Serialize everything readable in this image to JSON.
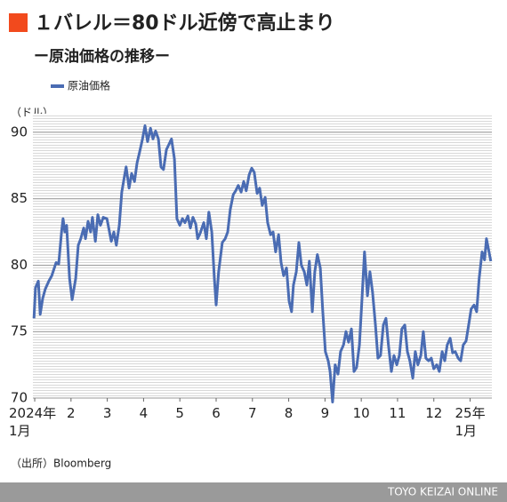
{
  "chart_data": {
    "type": "line",
    "title": "１バレル＝80ドル近傍で高止まり",
    "subtitle": "ー原油価格の推移ー",
    "y_label": "（ドル）",
    "source": "（出所）Bloomberg",
    "credit": "TOYO KEIZAI ONLINE",
    "xlim": [
      -0.05,
      12.6
    ],
    "xticks": [
      {
        "value": 0,
        "label": "2024年\n1月"
      },
      {
        "value": 1,
        "label": "2"
      },
      {
        "value": 2,
        "label": "3"
      },
      {
        "value": 3,
        "label": "4"
      },
      {
        "value": 4,
        "label": "5"
      },
      {
        "value": 5,
        "label": "6"
      },
      {
        "value": 6,
        "label": "7"
      },
      {
        "value": 7,
        "label": "8"
      },
      {
        "value": 8,
        "label": "9"
      },
      {
        "value": 9,
        "label": "10"
      },
      {
        "value": 10,
        "label": "11"
      },
      {
        "value": 11,
        "label": "12"
      },
      {
        "value": 12,
        "label": "25年\n1月"
      }
    ],
    "ylim": [
      70,
      91.4
    ],
    "yticks": [
      70,
      75,
      80,
      85,
      90
    ],
    "grid": true,
    "legend": "top-left",
    "x": [
      -0.02,
      0.02,
      0.1,
      0.15,
      0.22,
      0.29,
      0.39,
      0.47,
      0.54,
      0.59,
      0.66,
      0.74,
      0.78,
      0.83,
      0.88,
      0.96,
      1.03,
      1.13,
      1.2,
      1.27,
      1.35,
      1.4,
      1.47,
      1.54,
      1.59,
      1.67,
      1.74,
      1.81,
      1.89,
      1.99,
      2.06,
      2.11,
      2.18,
      2.25,
      2.33,
      2.4,
      2.48,
      2.52,
      2.6,
      2.67,
      2.75,
      2.82,
      2.89,
      2.97,
      3.04,
      3.11,
      3.19,
      3.26,
      3.33,
      3.41,
      3.48,
      3.55,
      3.63,
      3.7,
      3.77,
      3.85,
      3.92,
      4.0,
      4.07,
      4.14,
      4.22,
      4.29,
      4.36,
      4.44,
      4.49,
      4.56,
      4.66,
      4.73,
      4.8,
      4.88,
      4.95,
      5.0,
      5.07,
      5.17,
      5.25,
      5.32,
      5.39,
      5.47,
      5.54,
      5.61,
      5.69,
      5.76,
      5.83,
      5.91,
      5.98,
      6.05,
      6.13,
      6.2,
      6.27,
      6.35,
      6.42,
      6.5,
      6.57,
      6.64,
      6.72,
      6.79,
      6.86,
      6.94,
      7.01,
      7.08,
      7.13,
      7.21,
      7.28,
      7.35,
      7.43,
      7.5,
      7.57,
      7.65,
      7.72,
      7.79,
      7.87,
      7.94,
      8.01,
      8.09,
      8.14,
      8.21,
      8.28,
      8.36,
      8.43,
      8.51,
      8.58,
      8.65,
      8.73,
      8.8,
      8.87,
      8.95,
      9.02,
      9.09,
      9.17,
      9.24,
      9.31,
      9.39,
      9.46,
      9.53,
      9.61,
      9.68,
      9.75,
      9.83,
      9.9,
      9.98,
      10.05,
      10.12,
      10.2,
      10.27,
      10.34,
      10.42,
      10.49,
      10.56,
      10.64,
      10.71,
      10.78,
      10.86,
      10.93,
      11.0,
      11.08,
      11.15,
      11.23,
      11.3,
      11.37,
      11.45,
      11.52,
      11.59,
      11.67,
      11.74,
      11.81,
      11.89,
      11.96,
      12.03,
      12.11,
      12.18,
      12.25,
      12.33,
      12.4,
      12.45,
      12.5,
      12.57
    ],
    "series": [
      {
        "name": "原油価格",
        "color": "#4a6cb3",
        "values": [
          76,
          78.3,
          78.8,
          76.3,
          77.5,
          78.2,
          78.8,
          79.2,
          79.8,
          80.2,
          80.1,
          82.5,
          83.5,
          82.5,
          83,
          79,
          77.4,
          79,
          81.5,
          82,
          82.8,
          82,
          83.3,
          82.5,
          83.6,
          81.8,
          83.8,
          83,
          83.6,
          83.5,
          82.5,
          81.8,
          82.5,
          81.5,
          83,
          85.5,
          86.8,
          87.4,
          85.8,
          86.9,
          86.3,
          87.7,
          88.5,
          89.5,
          90.5,
          89.3,
          90.3,
          89.5,
          90.1,
          89.5,
          87.4,
          87.2,
          88.7,
          89.1,
          89.5,
          88,
          83.5,
          83,
          83.5,
          83.2,
          83.7,
          82.8,
          83.6,
          83.1,
          82,
          82.4,
          83.2,
          82,
          84,
          82.5,
          79,
          77,
          79.5,
          81.7,
          82,
          82.5,
          84.2,
          85.3,
          85.6,
          86,
          85.5,
          86.3,
          85.6,
          86.8,
          87.3,
          87,
          85.4,
          85.8,
          84.5,
          85.1,
          83.2,
          82.3,
          82.5,
          81,
          82.3,
          80.2,
          79.2,
          79.8,
          77.3,
          76.5,
          78.5,
          79.5,
          81.7,
          80,
          79.5,
          78.5,
          80.3,
          76.5,
          79.5,
          80.8,
          79.8,
          76.5,
          73.5,
          72.8,
          72,
          69.7,
          72.5,
          71.8,
          73.5,
          74,
          75,
          74.2,
          75.2,
          72,
          72.3,
          74,
          77.5,
          81,
          77.7,
          79.5,
          78,
          75.5,
          73,
          73.2,
          75.5,
          76,
          74,
          72,
          73.2,
          72.5,
          73.2,
          75.2,
          75.5,
          73.5,
          72.8,
          71.5,
          73.5,
          72.5,
          73.2,
          75,
          73,
          72.8,
          73,
          72.2,
          72.5,
          72,
          73.5,
          72.8,
          74,
          74.5,
          73.4,
          73.5,
          73,
          72.8,
          74,
          74.3,
          75.5,
          76.7,
          77,
          76.5,
          79,
          81,
          80.4,
          82,
          81.3,
          80.3
        ]
      }
    ]
  }
}
